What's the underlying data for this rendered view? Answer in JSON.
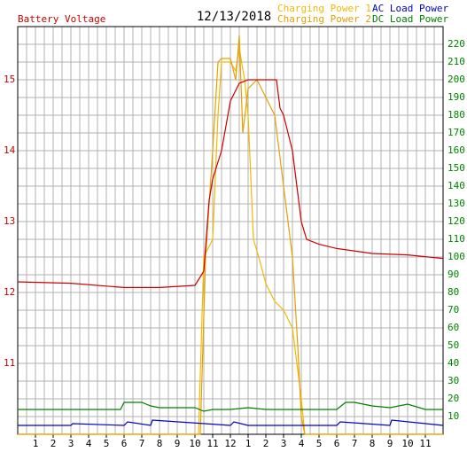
{
  "chart_data": {
    "type": "line",
    "title": "12/13/2018",
    "y_label": "Battery Voltage",
    "xlim": [
      0,
      24
    ],
    "xticks": [
      1,
      2,
      3,
      4,
      5,
      6,
      7,
      8,
      9,
      10,
      11,
      12,
      {
        "value": 13,
        "label": "1"
      },
      {
        "value": 14,
        "label": "2"
      },
      {
        "value": 15,
        "label": "3"
      },
      {
        "value": 16,
        "label": "4"
      },
      {
        "value": 17,
        "label": "5"
      },
      {
        "value": 18,
        "label": "6"
      },
      {
        "value": 19,
        "label": "7"
      },
      {
        "value": 20,
        "label": "8"
      },
      {
        "value": 21,
        "label": "9"
      },
      {
        "value": 22,
        "label": "10"
      },
      {
        "value": 23,
        "label": "11"
      }
    ],
    "xminorticks": [
      0.5,
      1.5,
      2.5,
      3.5,
      4.5,
      5.5,
      6.5,
      7.5,
      8.5,
      9.5,
      10.5,
      11.5,
      12.5,
      13.5,
      14.5,
      15.5,
      16.5,
      17.5,
      18.5,
      19.5,
      20.5,
      21.5,
      22.5,
      23.5
    ],
    "ylim": [
      10,
      15.75
    ],
    "yticks": [
      11,
      12,
      13,
      14,
      15
    ],
    "ytick_color": "#cc0000",
    "y2lim": [
      0,
      230
    ],
    "y2ticks": [
      10,
      20,
      30,
      40,
      50,
      60,
      70,
      80,
      90,
      100,
      110,
      120,
      130,
      140,
      150,
      160,
      170,
      180,
      190,
      200,
      210,
      220
    ],
    "y2tick_color": "#008000",
    "grid": true,
    "series": [
      {
        "name": "Charging Power 1",
        "color": "#f5b800",
        "axis": "y2",
        "x": [
          0,
          10.2,
          10.5,
          11,
          11.3,
          11.5,
          12,
          12.3,
          12.5,
          12.8,
          13,
          13.3,
          13.6,
          14,
          14.5,
          15,
          15.5,
          16,
          16.2,
          24
        ],
        "values": [
          0,
          0,
          100,
          110,
          180,
          210,
          210,
          205,
          218,
          200,
          180,
          110,
          100,
          85,
          75,
          70,
          60,
          20,
          0,
          0
        ]
      },
      {
        "name": "Charging Power 2",
        "color": "#e8a000",
        "axis": "y2",
        "x": [
          0,
          10.3,
          10.6,
          11,
          11.3,
          11.5,
          12,
          12.3,
          12.5,
          12.7,
          13,
          13.5,
          14,
          14.5,
          15,
          15.5,
          15.8,
          16,
          16.2,
          24
        ],
        "values": [
          0,
          0,
          100,
          160,
          210,
          212,
          212,
          200,
          225,
          170,
          195,
          200,
          190,
          180,
          140,
          100,
          50,
          10,
          0,
          0
        ]
      },
      {
        "name": "AC Load Power",
        "color": "#0000cc",
        "axis": "y2",
        "x": [
          0,
          3,
          3.1,
          6,
          6.2,
          7.5,
          7.6,
          12,
          12.2,
          13,
          18,
          18.2,
          21,
          21.1,
          24
        ],
        "values": [
          5,
          5,
          6,
          5,
          7,
          5,
          8,
          5,
          7,
          5,
          5,
          7,
          5,
          8,
          5
        ]
      },
      {
        "name": "DC Load Power",
        "color": "#008000",
        "axis": "y2",
        "x": [
          0,
          5,
          5.8,
          6,
          7,
          7.5,
          8,
          9,
          10,
          10.5,
          11,
          12,
          13,
          14,
          15,
          16,
          18,
          18.5,
          19,
          20,
          21,
          22,
          23,
          24
        ],
        "values": [
          14,
          14,
          14,
          18,
          18,
          16,
          15,
          15,
          15,
          13,
          14,
          14,
          15,
          14,
          14,
          14,
          14,
          18,
          18,
          16,
          15,
          17,
          14,
          14
        ]
      },
      {
        "name": "Battery Voltage",
        "color": "#cc0000",
        "axis": "y",
        "x": [
          0,
          3,
          6,
          8,
          10,
          10.5,
          10.8,
          11,
          11.5,
          12,
          12.5,
          13,
          14,
          14.6,
          14.8,
          15,
          15.5,
          16,
          16.3,
          17,
          18,
          20,
          22,
          24
        ],
        "values": [
          12.15,
          12.13,
          12.07,
          12.07,
          12.1,
          12.3,
          13.3,
          13.6,
          14.0,
          14.7,
          14.95,
          15.0,
          15.0,
          15.0,
          14.6,
          14.5,
          14.0,
          13.0,
          12.75,
          12.68,
          12.62,
          12.55,
          12.53,
          12.48
        ]
      }
    ]
  }
}
